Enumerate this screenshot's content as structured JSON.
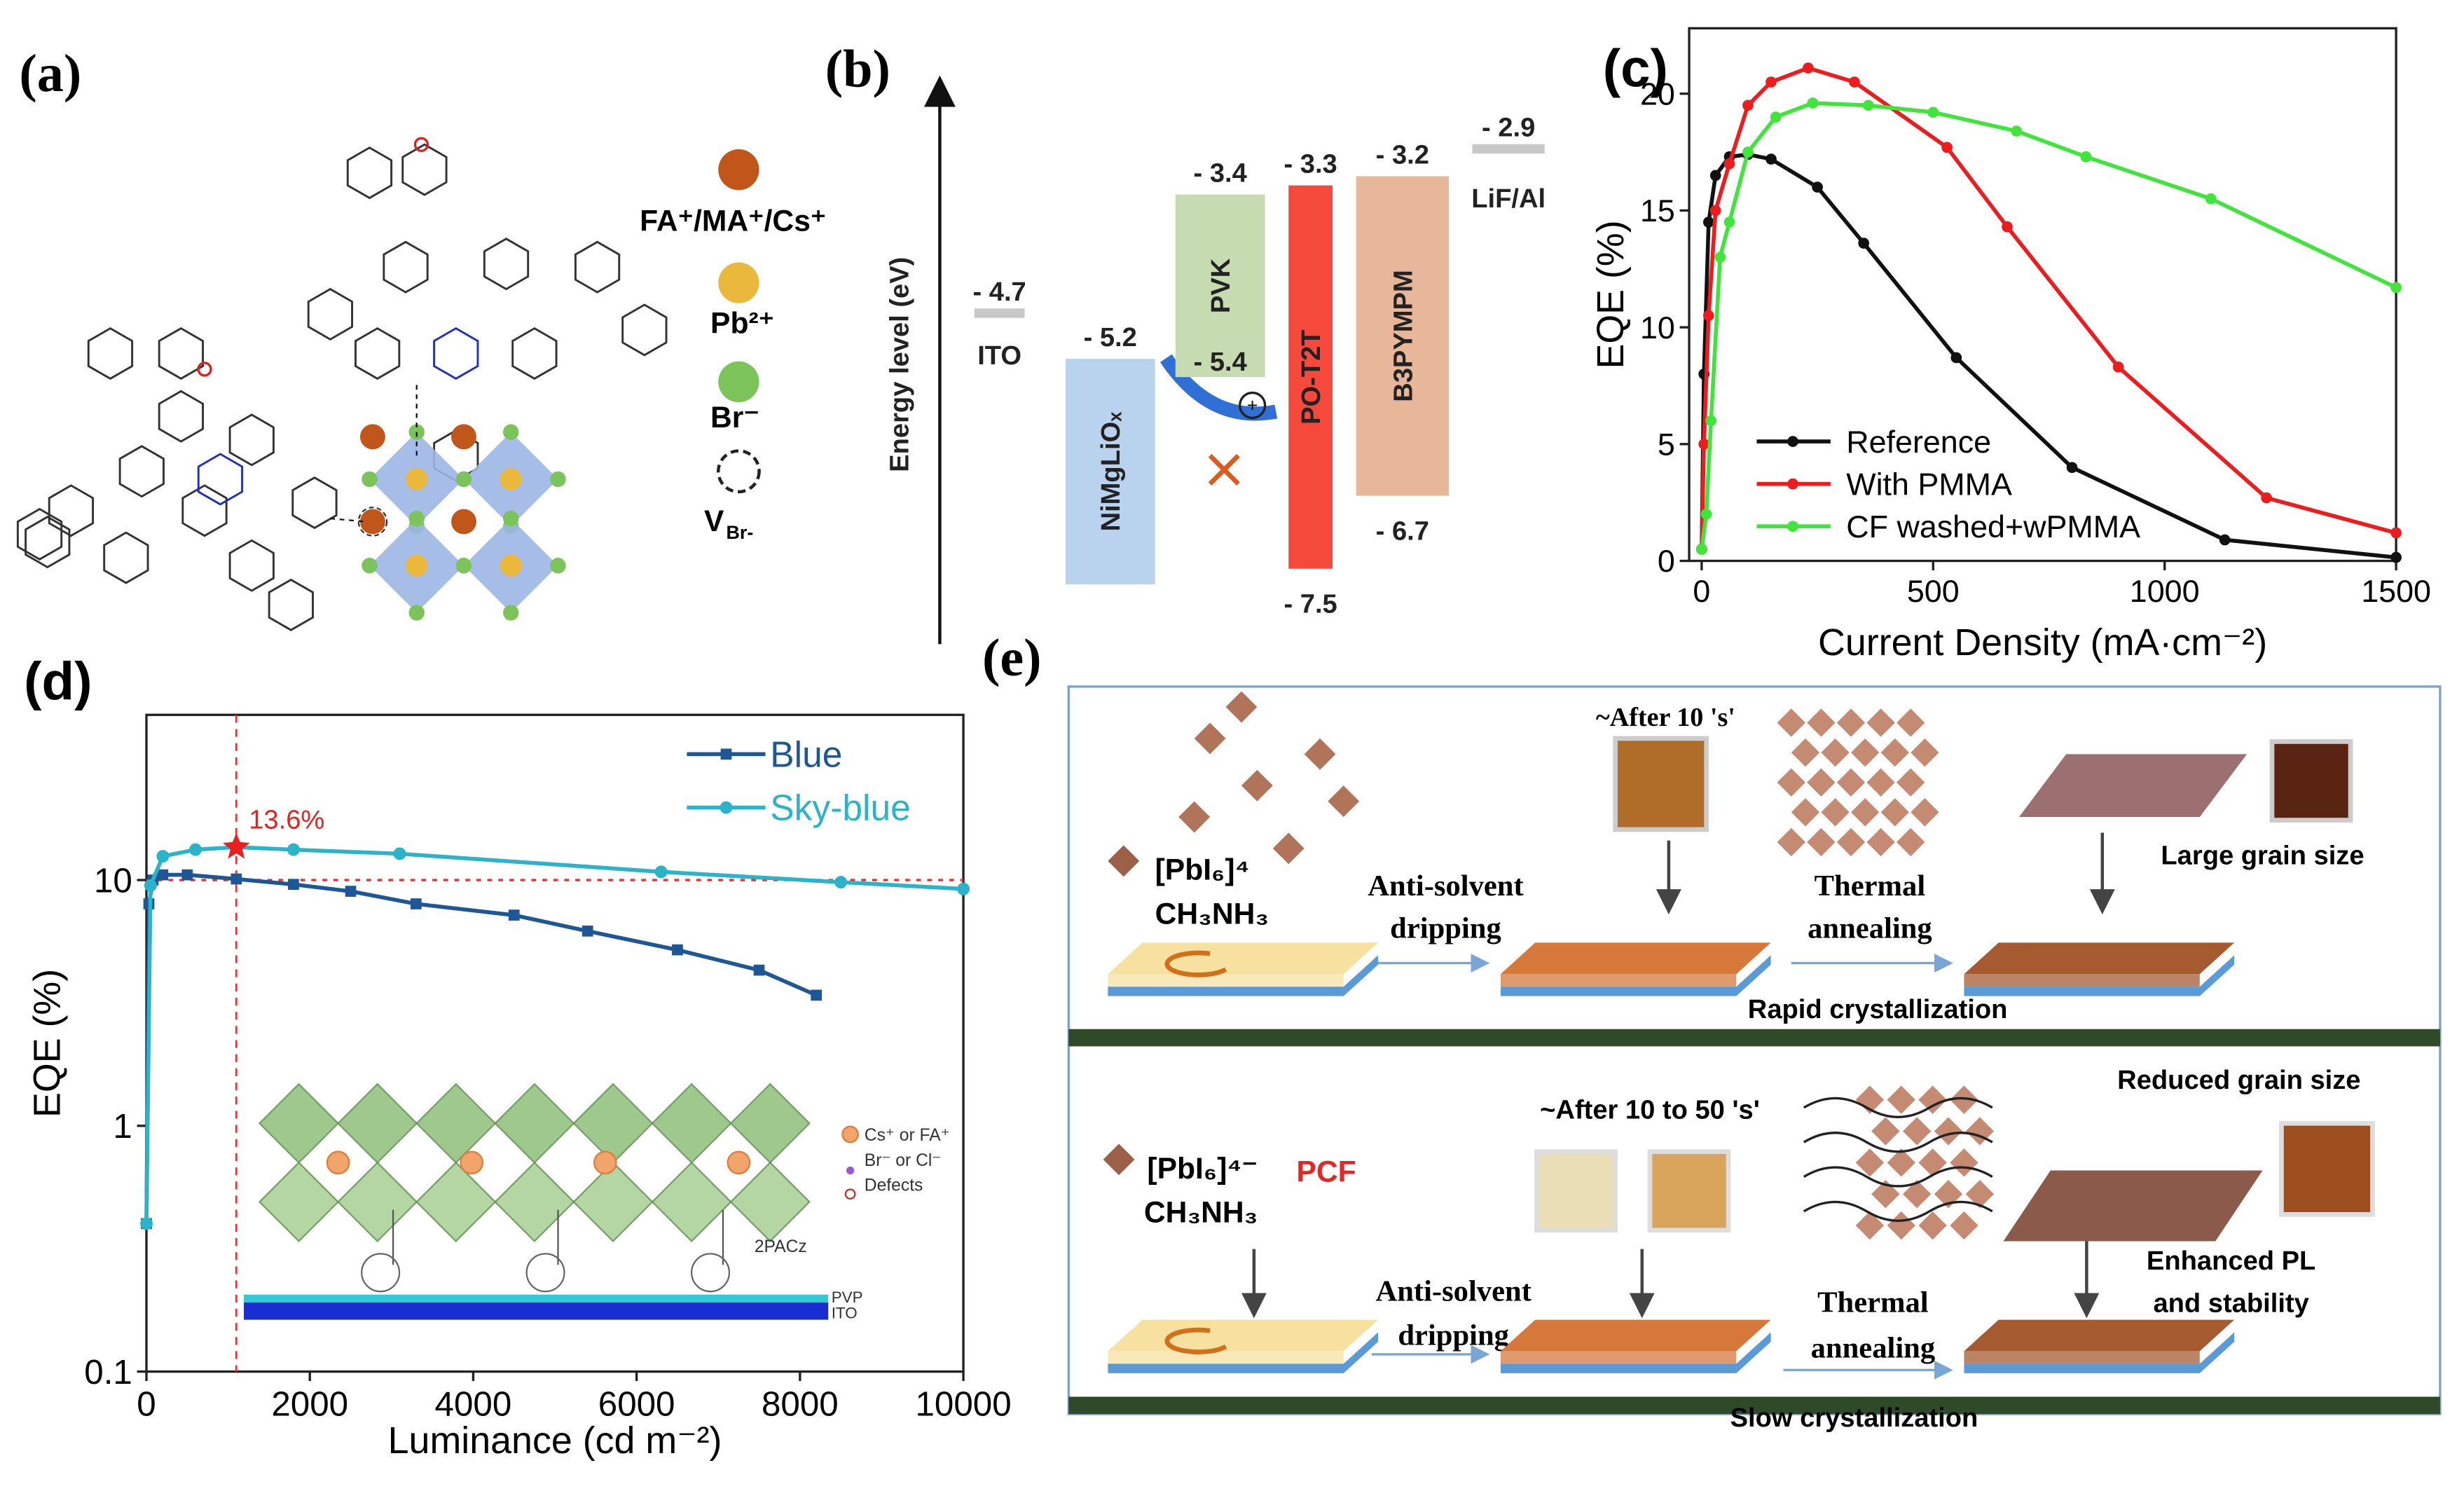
{
  "panel_a": {
    "label": "(a)",
    "legend": [
      {
        "label": "FA⁺/MA⁺/Cs⁺",
        "color": "#c0561a"
      },
      {
        "label": "Pb²⁺",
        "color": "#eab83a"
      },
      {
        "label": "Br⁻",
        "color": "#7cc45a"
      },
      {
        "label": "V",
        "sub": "Br-"
      }
    ]
  },
  "panel_b": {
    "label": "(b)",
    "y_label": "Energy level (eV)",
    "layers": [
      {
        "name": "ITO",
        "color": "#c8c8c8",
        "top": {
          "value": -4.7,
          "label": "- 4.7"
        }
      },
      {
        "name": "NiMgLiOₓ",
        "color": "#b9d3ee",
        "top": {
          "value": -5.2,
          "label": "- 5.2"
        }
      },
      {
        "name": "PVK",
        "color": "#c6dcb0",
        "top": {
          "value": -3.4,
          "label": "- 3.4"
        },
        "bottom": {
          "value": -5.4,
          "label": "- 5.4"
        }
      },
      {
        "name": "PO-T2T",
        "color": "#f4493b",
        "top": {
          "value": -3.3,
          "label": "- 3.3"
        },
        "bottom": {
          "value": -7.5,
          "label": "- 7.5"
        }
      },
      {
        "name": "B3PYMPM",
        "color": "#e8b79a",
        "top": {
          "value": -3.2,
          "label": "- 3.2"
        },
        "bottom": {
          "value": -6.7,
          "label": "- 6.7"
        }
      },
      {
        "name": "LiF/Al",
        "color": "#c8c8c8",
        "top": {
          "value": -2.9,
          "label": "- 2.9"
        }
      }
    ]
  },
  "chart_data": [
    {
      "type": "line",
      "label": "(c)",
      "x_label": "Current Density (mA·cm⁻²)",
      "y_label": "EQE (%)",
      "xlim": [
        -27,
        1500
      ],
      "ylim": [
        0,
        22.8
      ],
      "xticks": [
        0,
        500,
        1000,
        1500
      ],
      "yticks": [
        0,
        5,
        10,
        15,
        20
      ],
      "legend": "lower left",
      "series": [
        {
          "name": "Reference",
          "color": "#111111",
          "x": [
            0,
            5,
            15,
            30,
            60,
            100,
            150,
            250,
            350,
            550,
            800,
            1130,
            1500
          ],
          "values": [
            0.5,
            8,
            14.5,
            16.5,
            17.3,
            17.4,
            17.2,
            16,
            13.6,
            8.7,
            4,
            0.9,
            0.15
          ]
        },
        {
          "name": "With PMMA",
          "color": "#ee1c1c",
          "x": [
            0,
            5,
            15,
            30,
            60,
            100,
            150,
            230,
            330,
            530,
            660,
            900,
            1220,
            1500
          ],
          "values": [
            0.5,
            5,
            10.5,
            15,
            17,
            19.5,
            20.5,
            21.1,
            20.5,
            17.7,
            14.3,
            8.3,
            2.7,
            1.2
          ]
        },
        {
          "name": "CF washed+wPMMA",
          "color": "#3fe53a",
          "x": [
            0,
            10,
            20,
            40,
            60,
            100,
            160,
            240,
            360,
            500,
            680,
            830,
            1100,
            1500
          ],
          "values": [
            0.5,
            2,
            6,
            13,
            14.5,
            17.5,
            19,
            19.6,
            19.5,
            19.2,
            18.4,
            17.3,
            15.5,
            11.7
          ]
        }
      ]
    },
    {
      "type": "line",
      "label": "(d)",
      "x_label": "Luminance (cd m⁻²)",
      "y_label": "EQE (%)",
      "log_y": true,
      "xlim": [
        0,
        10000
      ],
      "ylim": [
        0.1,
        47
      ],
      "xticks": [
        0,
        2000,
        4000,
        6000,
        8000,
        10000
      ],
      "yticks": [
        0.1,
        1,
        10
      ],
      "legend": "upper right",
      "annotation": {
        "text": "13.6%",
        "x": 1100,
        "y": 13.6
      },
      "hline": 10,
      "series": [
        {
          "name": "Blue",
          "color": "#1d5796",
          "x": [
            0,
            30,
            80,
            200,
            500,
            1100,
            1800,
            2500,
            3300,
            4500,
            5400,
            6500,
            7500,
            8200
          ],
          "values": [
            0.4,
            8,
            10,
            10.5,
            10.5,
            10.1,
            9.6,
            9,
            8,
            7.2,
            6.2,
            5.2,
            4.3,
            3.4
          ]
        },
        {
          "name": "Sky-blue",
          "color": "#2bb3c9",
          "x": [
            0,
            50,
            200,
            600,
            1100,
            1800,
            3100,
            6300,
            8500,
            10000
          ],
          "values": [
            0.4,
            9.5,
            12.5,
            13.3,
            13.6,
            13.3,
            12.8,
            10.8,
            9.8,
            9.2
          ]
        }
      ],
      "inset": {
        "legend": [
          "Cs⁺ or FA⁺",
          "Br⁻ or Cl⁻",
          "Defects"
        ],
        "molecule": "2PACz",
        "layers": [
          "PVP",
          "ITO"
        ]
      }
    }
  ],
  "panel_e": {
    "label": "(e)",
    "rows": [
      {
        "time": "~After 10 's'",
        "precursor": "[PbI₆]⁴",
        "cation": "CH₃NH₃",
        "step1": [
          "Anti-solvent",
          "dripping"
        ],
        "step2": [
          "Thermal",
          "annealing"
        ],
        "result": [
          "Large grain size"
        ],
        "process": "Rapid crystallization"
      },
      {
        "time": "~After 10 to 50  's'",
        "precursor": "[PbI₆]⁴⁻",
        "additive": "PCF",
        "cation": "CH₃NH₃",
        "step1": [
          "Anti-solvent",
          "dripping"
        ],
        "step2": [
          "Thermal",
          "annealing"
        ],
        "result": [
          "Reduced grain size",
          "Enhanced PL",
          "and stability"
        ],
        "process": "Slow crystallization"
      }
    ]
  }
}
